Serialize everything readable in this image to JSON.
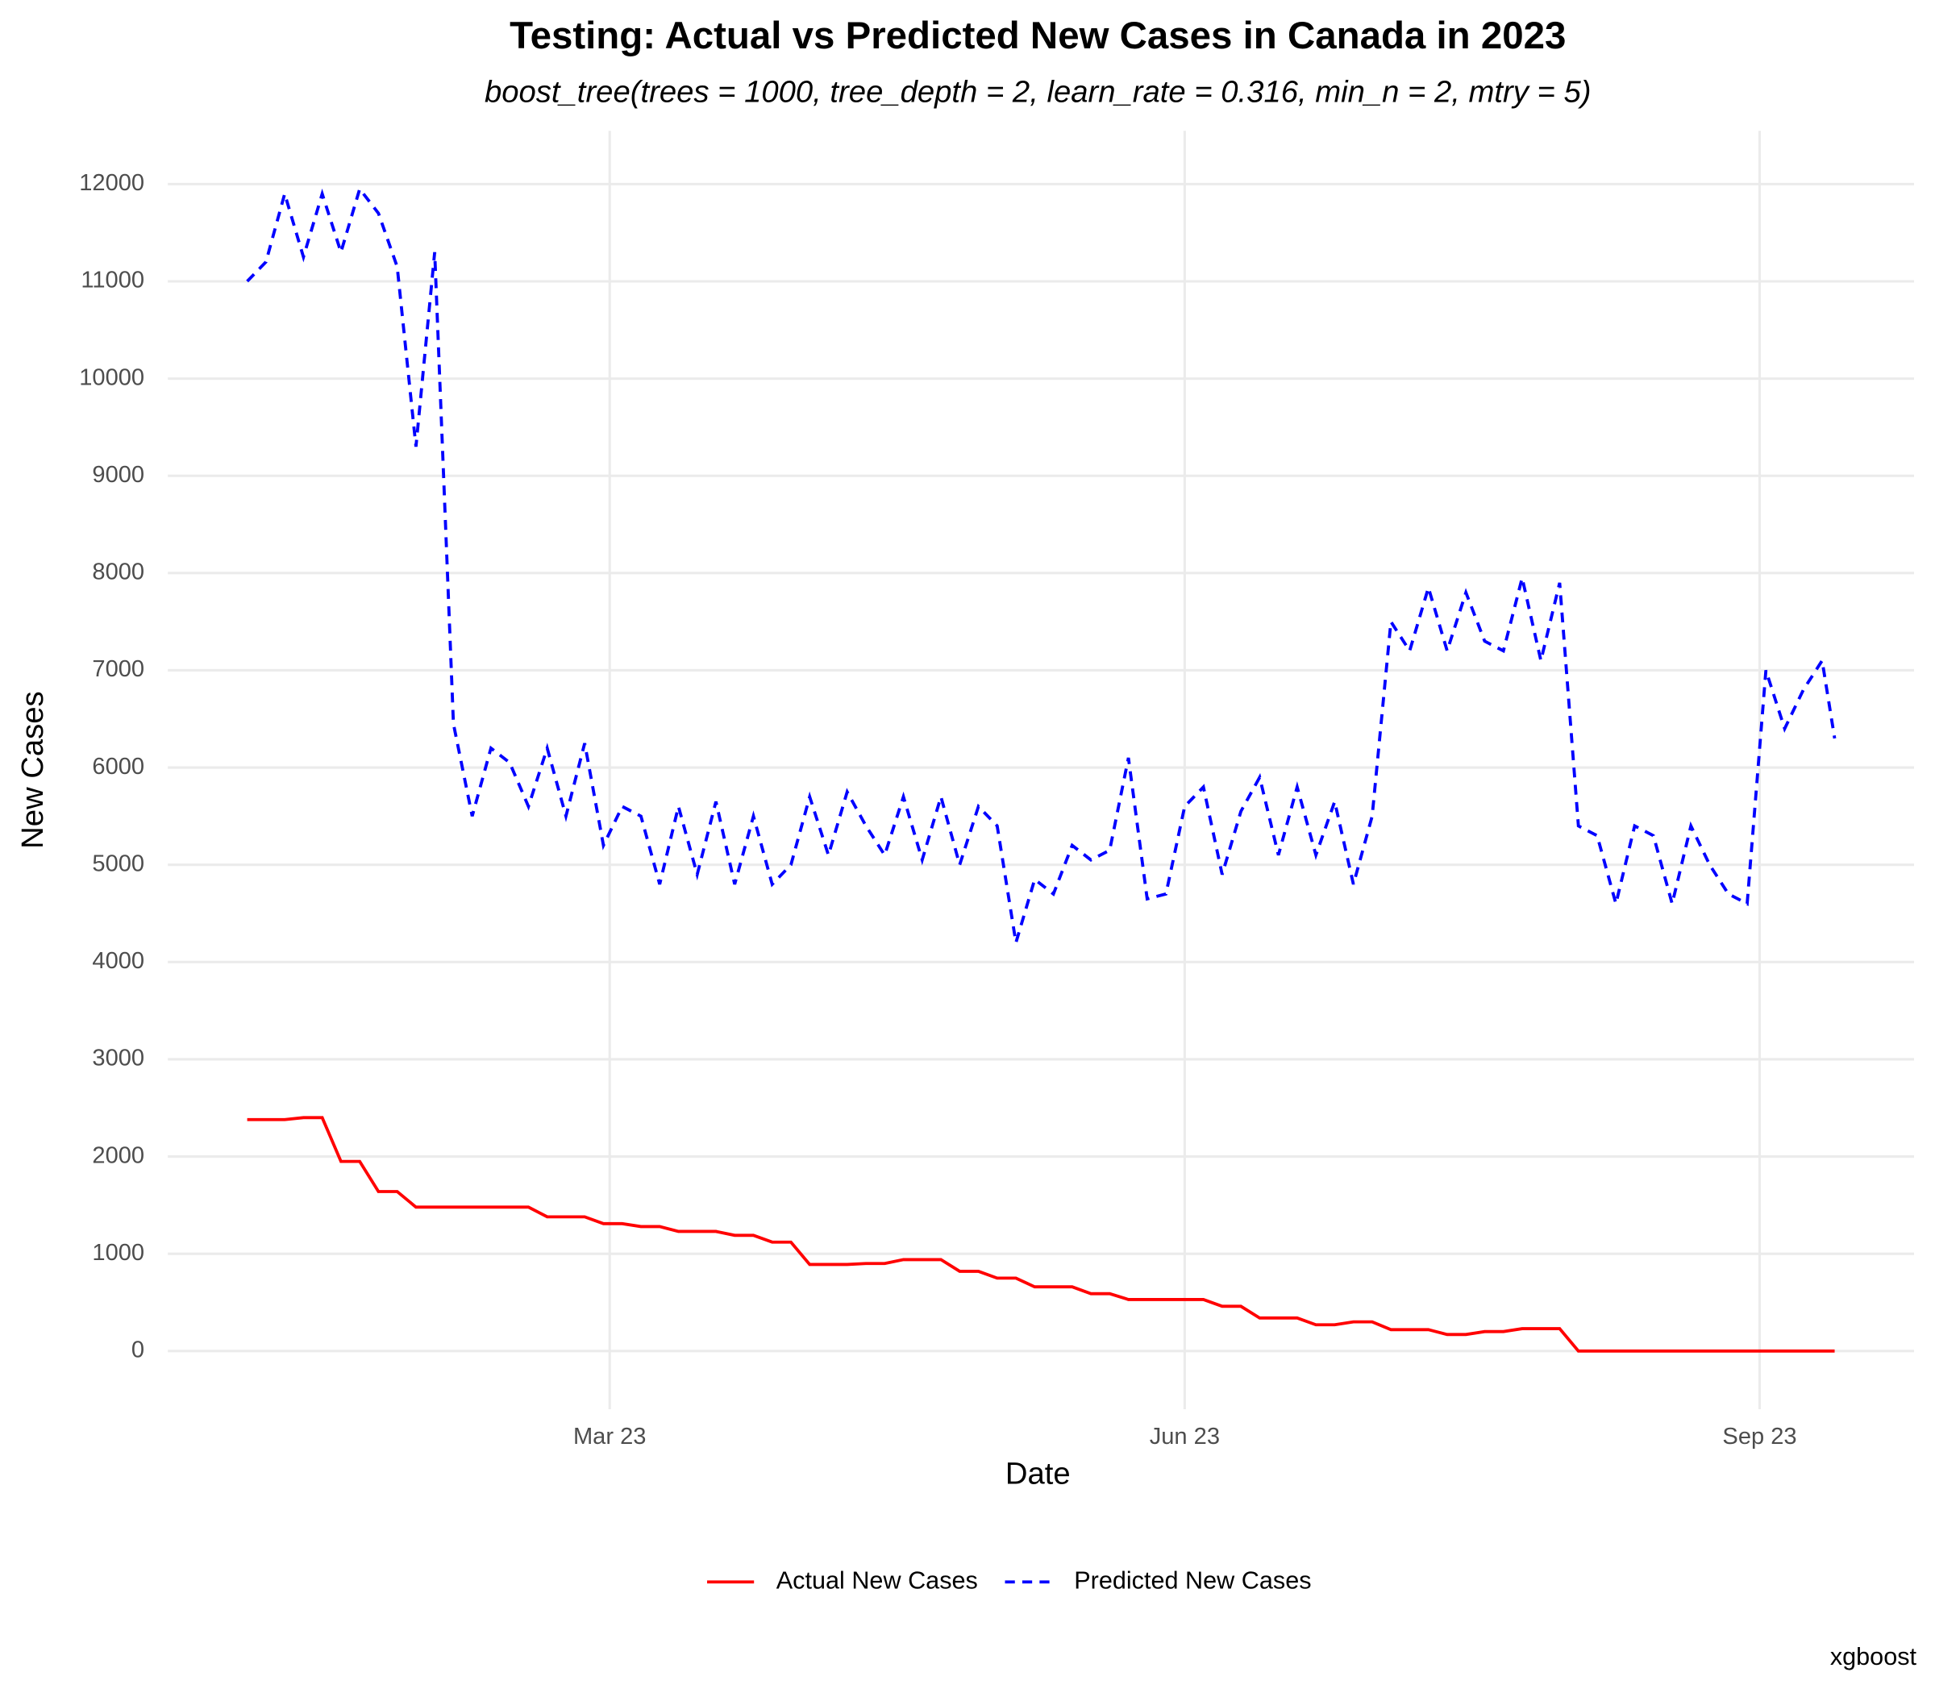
{
  "chart_data": {
    "type": "line",
    "title": "Testing: Actual vs Predicted New Cases in Canada in 2023",
    "subtitle": "boost_tree(trees = 1000, tree_depth = 2, learn_rate = 0.316, min_n = 2, mtry = 5)",
    "x_label": "Date",
    "y_label": "New Cases",
    "caption": "xgboost",
    "x": [
      2,
      5,
      8,
      11,
      14,
      17,
      20,
      23,
      26,
      29,
      32,
      35,
      38,
      41,
      44,
      47,
      50,
      53,
      56,
      59,
      62,
      65,
      68,
      71,
      74,
      77,
      80,
      83,
      86,
      89,
      92,
      95,
      98,
      101,
      104,
      107,
      110,
      113,
      116,
      119,
      122,
      125,
      128,
      131,
      134,
      137,
      140,
      143,
      146,
      149,
      152,
      155,
      158,
      161,
      164,
      167,
      170,
      173,
      176,
      179,
      182,
      185,
      188,
      191,
      194,
      197,
      200,
      203,
      206,
      209,
      212,
      215,
      218,
      221,
      224,
      227,
      230,
      233,
      236,
      239,
      242,
      245,
      248,
      251,
      254,
      256
    ],
    "series": [
      {
        "name": "Actual New Cases",
        "color": "#ff0000",
        "linestyle": "solid",
        "values": [
          2380,
          2380,
          2380,
          2400,
          2400,
          1950,
          1950,
          1640,
          1640,
          1480,
          1480,
          1480,
          1480,
          1480,
          1480,
          1480,
          1380,
          1380,
          1380,
          1310,
          1310,
          1280,
          1280,
          1230,
          1230,
          1230,
          1190,
          1190,
          1120,
          1120,
          890,
          890,
          890,
          900,
          900,
          940,
          940,
          940,
          820,
          820,
          750,
          750,
          660,
          660,
          660,
          590,
          590,
          530,
          530,
          530,
          530,
          530,
          460,
          460,
          340,
          340,
          340,
          270,
          270,
          300,
          300,
          220,
          220,
          220,
          170,
          170,
          200,
          200,
          230,
          230,
          230,
          0,
          0,
          0,
          0,
          0,
          0,
          0,
          0,
          0,
          0,
          0,
          0,
          0,
          0,
          0
        ]
      },
      {
        "name": "Predicted New Cases",
        "color": "#0000ff",
        "linestyle": "dashed",
        "values": [
          11000,
          11200,
          11900,
          11250,
          11900,
          11300,
          11950,
          11700,
          11150,
          9300,
          11300,
          6450,
          5500,
          6200,
          6050,
          5600,
          6200,
          5500,
          6250,
          5200,
          5600,
          5500,
          4800,
          5600,
          4900,
          5650,
          4800,
          5500,
          4800,
          5000,
          5700,
          5100,
          5750,
          5400,
          5100,
          5700,
          5050,
          5700,
          5000,
          5600,
          5400,
          4200,
          4850,
          4700,
          5200,
          5050,
          5150,
          6100,
          4650,
          4700,
          5600,
          5800,
          4900,
          5550,
          5900,
          5100,
          5800,
          5100,
          5650,
          4800,
          5500,
          7500,
          7200,
          7850,
          7200,
          7800,
          7300,
          7200,
          7950,
          7100,
          7900,
          5400,
          5300,
          4600,
          5400,
          5300,
          4600,
          5400,
          5000,
          4700,
          4600,
          7000,
          6400,
          6800,
          7100,
          6300
        ]
      }
    ],
    "xlim": [
      -10.7,
      268.7
    ],
    "xticks": [
      {
        "value": 60,
        "label": "Mar 23"
      },
      {
        "value": 152,
        "label": "Jun 23"
      },
      {
        "value": 244,
        "label": "Sep 23"
      }
    ],
    "ylim": [
      -598,
      12548
    ],
    "yticks": [
      0,
      1000,
      2000,
      3000,
      4000,
      5000,
      6000,
      7000,
      8000,
      9000,
      10000,
      11000,
      12000
    ],
    "grid": true,
    "legend": "bottom"
  }
}
